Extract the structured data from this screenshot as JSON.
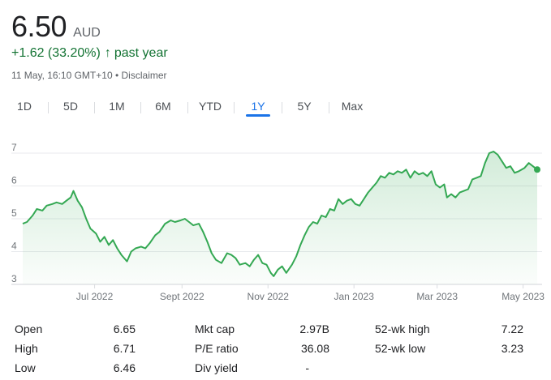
{
  "quote": {
    "price": "6.50",
    "currency": "AUD",
    "change": "+1.62 (33.20%)",
    "change_arrow": "↑",
    "period": "past year",
    "timestamp": "11 May, 16:10 GMT+10",
    "separator": "•",
    "disclaimer": "Disclaimer"
  },
  "tabs": [
    {
      "label": "1D"
    },
    {
      "label": "5D"
    },
    {
      "label": "1M"
    },
    {
      "label": "6M"
    },
    {
      "label": "YTD"
    },
    {
      "label": "1Y",
      "active": true
    },
    {
      "label": "5Y"
    },
    {
      "label": "Max"
    }
  ],
  "stats": {
    "columns": [
      [
        {
          "label": "Open",
          "value": "6.65"
        },
        {
          "label": "High",
          "value": "6.71"
        },
        {
          "label": "Low",
          "value": "6.46"
        }
      ],
      [
        {
          "label": "Mkt cap",
          "value": "2.97B"
        },
        {
          "label": "P/E ratio",
          "value": "36.08"
        },
        {
          "label": "Div yield",
          "value": "-"
        }
      ],
      [
        {
          "label": "52-wk high",
          "value": "7.22"
        },
        {
          "label": "52-wk low",
          "value": "3.23"
        }
      ]
    ]
  },
  "chart_data": {
    "type": "area",
    "color": "#34a853",
    "fill_color": "#e6f4ea",
    "gridline_color": "#e8eaed",
    "ylim": [
      3,
      7
    ],
    "y_ticks": [
      "3",
      "4",
      "5",
      "6",
      "7"
    ],
    "x_ticks": [
      "Jul 2022",
      "Sept 2022",
      "Nov 2022",
      "Jan 2023",
      "Mar 2023",
      "May 2023"
    ],
    "x_tick_dates": [
      "2022-07-01",
      "2022-09-01",
      "2022-11-01",
      "2023-01-01",
      "2023-03-01",
      "2023-05-01"
    ],
    "x_range": [
      "2022-05-11",
      "2023-05-11"
    ],
    "series": [
      {
        "points": [
          [
            "2022-05-11",
            4.85
          ],
          [
            "2022-05-14",
            4.9
          ],
          [
            "2022-05-18",
            5.1
          ],
          [
            "2022-05-21",
            5.3
          ],
          [
            "2022-05-25",
            5.25
          ],
          [
            "2022-05-28",
            5.4
          ],
          [
            "2022-06-01",
            5.45
          ],
          [
            "2022-06-04",
            5.5
          ],
          [
            "2022-06-08",
            5.45
          ],
          [
            "2022-06-11",
            5.55
          ],
          [
            "2022-06-14",
            5.65
          ],
          [
            "2022-06-16",
            5.85
          ],
          [
            "2022-06-19",
            5.55
          ],
          [
            "2022-06-22",
            5.35
          ],
          [
            "2022-06-25",
            5.0
          ],
          [
            "2022-06-28",
            4.7
          ],
          [
            "2022-07-02",
            4.55
          ],
          [
            "2022-07-05",
            4.3
          ],
          [
            "2022-07-08",
            4.45
          ],
          [
            "2022-07-11",
            4.2
          ],
          [
            "2022-07-14",
            4.35
          ],
          [
            "2022-07-17",
            4.1
          ],
          [
            "2022-07-20",
            3.9
          ],
          [
            "2022-07-24",
            3.7
          ],
          [
            "2022-07-27",
            4.0
          ],
          [
            "2022-07-30",
            4.1
          ],
          [
            "2022-08-03",
            4.15
          ],
          [
            "2022-08-06",
            4.1
          ],
          [
            "2022-08-09",
            4.25
          ],
          [
            "2022-08-13",
            4.5
          ],
          [
            "2022-08-16",
            4.6
          ],
          [
            "2022-08-20",
            4.85
          ],
          [
            "2022-08-24",
            4.95
          ],
          [
            "2022-08-27",
            4.9
          ],
          [
            "2022-08-31",
            4.95
          ],
          [
            "2022-09-03",
            5.0
          ],
          [
            "2022-09-06",
            4.9
          ],
          [
            "2022-09-09",
            4.8
          ],
          [
            "2022-09-13",
            4.85
          ],
          [
            "2022-09-16",
            4.6
          ],
          [
            "2022-09-19",
            4.3
          ],
          [
            "2022-09-22",
            3.95
          ],
          [
            "2022-09-25",
            3.75
          ],
          [
            "2022-09-29",
            3.65
          ],
          [
            "2022-10-03",
            3.95
          ],
          [
            "2022-10-06",
            3.9
          ],
          [
            "2022-10-09",
            3.8
          ],
          [
            "2022-10-12",
            3.6
          ],
          [
            "2022-10-16",
            3.65
          ],
          [
            "2022-10-19",
            3.55
          ],
          [
            "2022-10-22",
            3.75
          ],
          [
            "2022-10-25",
            3.9
          ],
          [
            "2022-10-28",
            3.65
          ],
          [
            "2022-10-31",
            3.6
          ],
          [
            "2022-11-03",
            3.35
          ],
          [
            "2022-11-05",
            3.25
          ],
          [
            "2022-11-08",
            3.45
          ],
          [
            "2022-11-11",
            3.55
          ],
          [
            "2022-11-14",
            3.35
          ],
          [
            "2022-11-18",
            3.6
          ],
          [
            "2022-11-21",
            3.85
          ],
          [
            "2022-11-24",
            4.2
          ],
          [
            "2022-11-27",
            4.5
          ],
          [
            "2022-11-30",
            4.75
          ],
          [
            "2022-12-03",
            4.9
          ],
          [
            "2022-12-06",
            4.85
          ],
          [
            "2022-12-09",
            5.1
          ],
          [
            "2022-12-12",
            5.05
          ],
          [
            "2022-12-15",
            5.3
          ],
          [
            "2022-12-18",
            5.25
          ],
          [
            "2022-12-21",
            5.6
          ],
          [
            "2022-12-24",
            5.45
          ],
          [
            "2022-12-27",
            5.55
          ],
          [
            "2022-12-30",
            5.6
          ],
          [
            "2023-01-02",
            5.45
          ],
          [
            "2023-01-05",
            5.4
          ],
          [
            "2023-01-08",
            5.6
          ],
          [
            "2023-01-11",
            5.8
          ],
          [
            "2023-01-14",
            5.95
          ],
          [
            "2023-01-17",
            6.1
          ],
          [
            "2023-01-20",
            6.3
          ],
          [
            "2023-01-23",
            6.25
          ],
          [
            "2023-01-26",
            6.4
          ],
          [
            "2023-01-29",
            6.35
          ],
          [
            "2023-02-01",
            6.45
          ],
          [
            "2023-02-04",
            6.4
          ],
          [
            "2023-02-07",
            6.5
          ],
          [
            "2023-02-10",
            6.25
          ],
          [
            "2023-02-13",
            6.45
          ],
          [
            "2023-02-16",
            6.35
          ],
          [
            "2023-02-19",
            6.4
          ],
          [
            "2023-02-22",
            6.3
          ],
          [
            "2023-02-25",
            6.45
          ],
          [
            "2023-02-28",
            6.05
          ],
          [
            "2023-03-03",
            5.95
          ],
          [
            "2023-03-06",
            6.05
          ],
          [
            "2023-03-08",
            5.65
          ],
          [
            "2023-03-11",
            5.75
          ],
          [
            "2023-03-14",
            5.65
          ],
          [
            "2023-03-17",
            5.8
          ],
          [
            "2023-03-20",
            5.85
          ],
          [
            "2023-03-23",
            5.9
          ],
          [
            "2023-03-26",
            6.2
          ],
          [
            "2023-03-29",
            6.25
          ],
          [
            "2023-04-01",
            6.3
          ],
          [
            "2023-04-04",
            6.7
          ],
          [
            "2023-04-07",
            7.0
          ],
          [
            "2023-04-10",
            7.05
          ],
          [
            "2023-04-13",
            6.95
          ],
          [
            "2023-04-16",
            6.75
          ],
          [
            "2023-04-19",
            6.55
          ],
          [
            "2023-04-22",
            6.6
          ],
          [
            "2023-04-25",
            6.4
          ],
          [
            "2023-04-28",
            6.45
          ],
          [
            "2023-05-02",
            6.55
          ],
          [
            "2023-05-05",
            6.7
          ],
          [
            "2023-05-08",
            6.6
          ],
          [
            "2023-05-11",
            6.5
          ]
        ]
      }
    ],
    "last_point_marker": true
  }
}
